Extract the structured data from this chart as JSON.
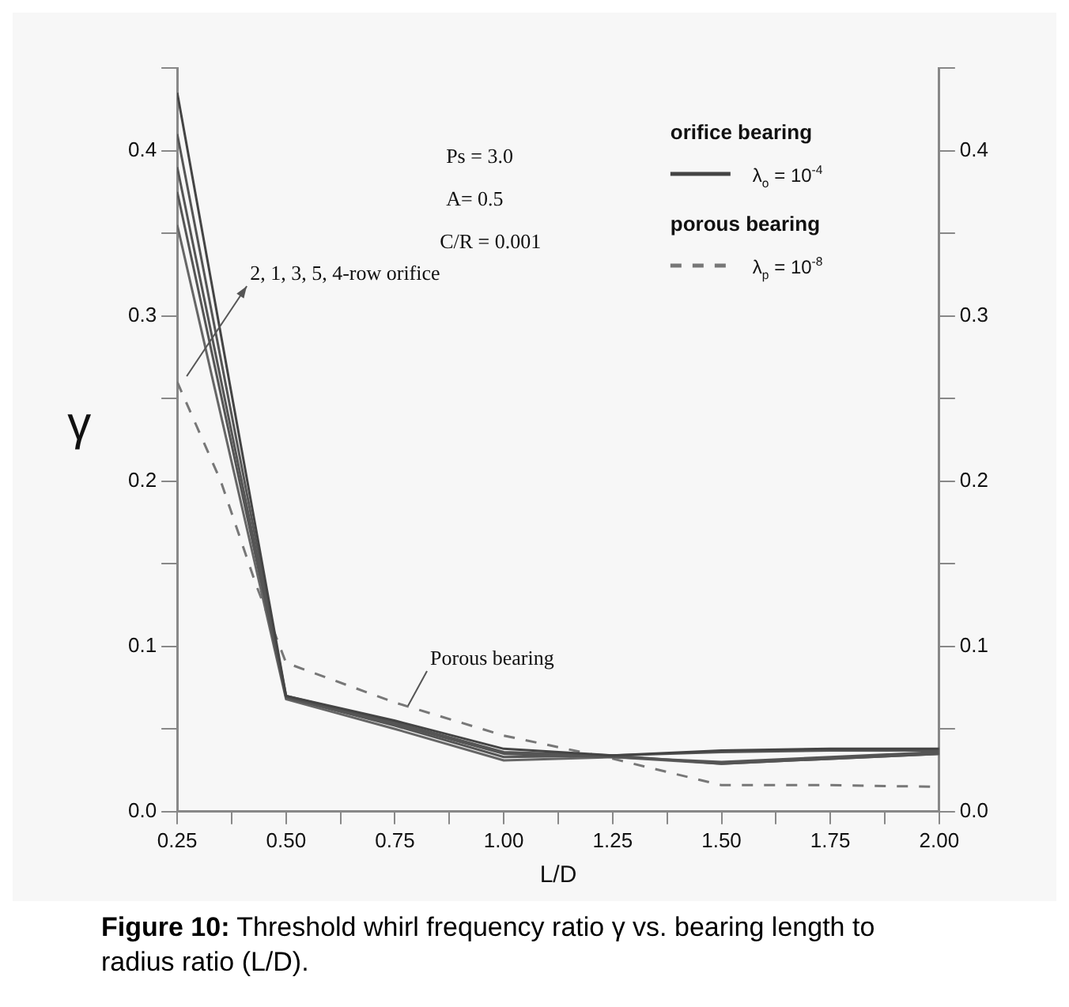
{
  "chart_data": {
    "type": "line",
    "xlabel": "L/D",
    "ylabel": "γ",
    "x": [
      0.25,
      0.5,
      0.75,
      1.0,
      1.25,
      1.5,
      1.75,
      2.0
    ],
    "series": [
      {
        "name": "λ$_{o}$ = 10$^{-4}$",
        "color": "#444444",
        "line_style": "solid",
        "values": [
          0.435,
          0.07,
          0.055,
          0.038,
          0.034,
          0.037,
          0.038,
          0.038
        ]
      },
      {
        "color": "#555555",
        "line_style": "solid",
        "values": [
          0.41,
          0.07,
          0.054,
          0.036,
          0.034,
          0.036,
          0.037,
          0.037
        ]
      },
      {
        "color": "#555555",
        "line_style": "solid",
        "values": [
          0.39,
          0.069,
          0.053,
          0.035,
          0.033,
          0.03,
          0.033,
          0.036
        ]
      },
      {
        "color": "#555555",
        "line_style": "solid",
        "values": [
          0.375,
          0.069,
          0.052,
          0.033,
          0.034,
          0.029,
          0.032,
          0.035
        ]
      },
      {
        "color": "#666666",
        "line_style": "solid",
        "values": [
          0.355,
          0.068,
          0.05,
          0.031,
          0.033,
          0.029,
          0.032,
          0.035
        ]
      },
      {
        "name": "λ$_{p}$ = 10$^{-8}$",
        "color": "#777777",
        "line_style": "dashed",
        "x": [
          0.25,
          0.35,
          0.43,
          0.5,
          0.75,
          1.0,
          1.25,
          1.5,
          1.75,
          2.0
        ],
        "values": [
          0.26,
          0.2,
          0.138,
          0.09,
          0.066,
          0.046,
          0.032,
          0.016,
          0.016,
          0.015
        ]
      }
    ],
    "xlim": [
      0.25,
      2.0
    ],
    "xticks": [
      {
        "value": 0.25,
        "label": "0.25"
      },
      {
        "value": 0.375,
        "label": null
      },
      {
        "value": 0.5,
        "label": "0.50"
      },
      {
        "value": 0.625,
        "label": null
      },
      {
        "value": 0.75,
        "label": "0.75"
      },
      {
        "value": 0.875,
        "label": null
      },
      {
        "value": 1.0,
        "label": "1.00"
      },
      {
        "value": 1.125,
        "label": null
      },
      {
        "value": 1.25,
        "label": "1.25"
      },
      {
        "value": 1.375,
        "label": null
      },
      {
        "value": 1.5,
        "label": "1.50"
      },
      {
        "value": 1.625,
        "label": null
      },
      {
        "value": 1.75,
        "label": "1.75"
      },
      {
        "value": 1.875,
        "label": null
      },
      {
        "value": 2.0,
        "label": "2.00"
      }
    ],
    "ylim": [
      0,
      0.45
    ],
    "yticks": [
      {
        "value": 0,
        "label": "0.0"
      },
      {
        "value": 0.05,
        "label": null
      },
      0.1,
      {
        "value": 0.15,
        "label": null
      },
      0.2,
      {
        "value": 0.25,
        "label": null
      },
      0.3,
      {
        "value": 0.35,
        "label": null
      },
      0.4,
      {
        "value": 0.45,
        "label": null
      }
    ],
    "y2lim": [
      0,
      0.45
    ],
    "y2ticks": [
      {
        "value": 0,
        "label": "0.0"
      },
      {
        "value": 0.05,
        "label": null
      },
      0.1,
      {
        "value": 0.15,
        "label": null
      },
      0.2,
      {
        "value": 0.25,
        "label": null
      },
      0.3,
      {
        "value": 0.35,
        "label": null
      },
      0.4,
      {
        "value": 0.45,
        "label": null
      }
    ],
    "grid": false,
    "marker": "none",
    "legend": "top right",
    "annotations": [
      "Ps = 3.0",
      "A= 0.5",
      "C/R = 0.001",
      "orifice bearing",
      "porous bearing",
      "2, 1, 3, 5, 4-row orifice",
      {
        "text": "Porous bearing",
        "x": 0.78,
        "y": 0.064
      },
      "Figure 10: Threshold whirl frequency ratio γ vs. bearing length to radius ratio (L/D)."
    ]
  }
}
